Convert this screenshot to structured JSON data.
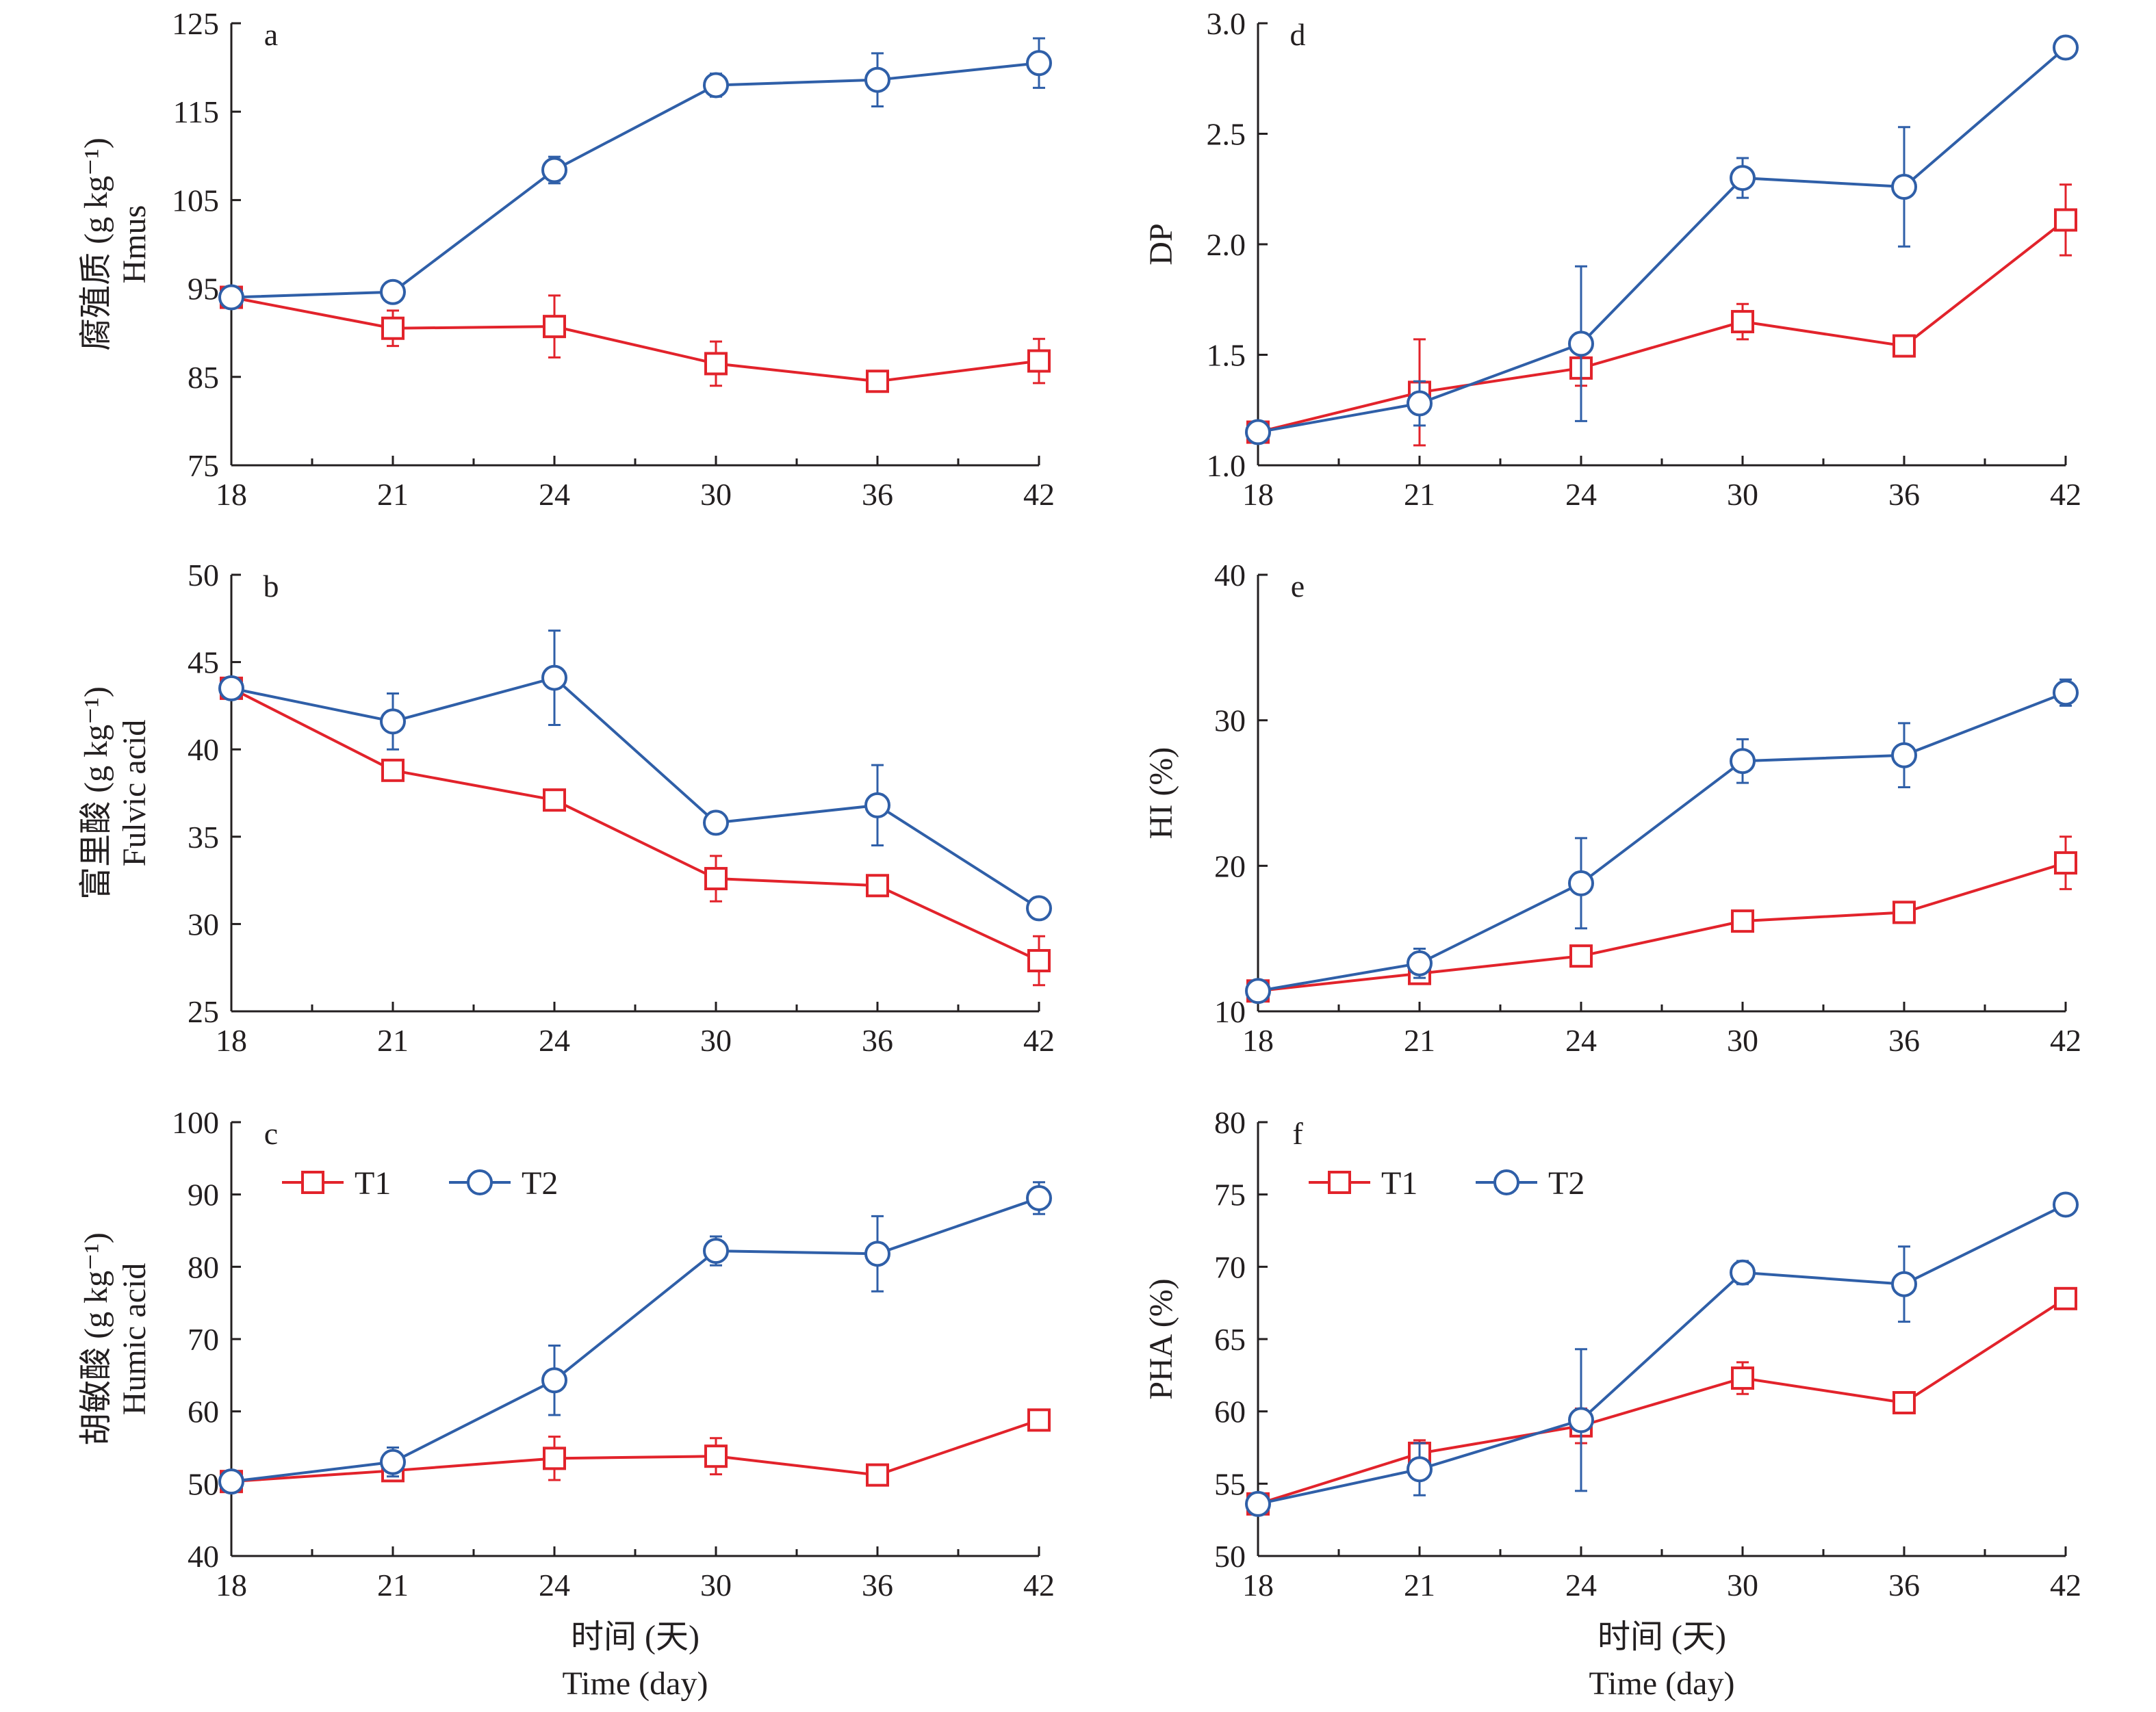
{
  "colors": {
    "T1": "#e2232b",
    "T2": "#2f5fa8",
    "axis": "#231f20"
  },
  "markers": {
    "T1": "square",
    "T2": "circle"
  },
  "chart_data": [
    {
      "id": "a",
      "type": "line",
      "letter": "a",
      "ylabel_zh": "腐殖质 (g kg⁻¹)",
      "ylabel_en": "Hmus",
      "xlabel_zh": "",
      "xlabel_en": "",
      "categories": [
        "18",
        "21",
        "24",
        "30",
        "36",
        "42"
      ],
      "ylim": [
        75,
        125
      ],
      "yticks": [
        75,
        85,
        95,
        105,
        115,
        125
      ],
      "ytick_labels": [
        "75",
        "85",
        "95",
        "105",
        "115",
        "125"
      ],
      "legend": false,
      "series": [
        {
          "name": "T1",
          "values": [
            94,
            90.5,
            90.7,
            86.5,
            84.5,
            86.8
          ],
          "errors": [
            0.8,
            2.0,
            3.5,
            2.5,
            0.6,
            2.5
          ]
        },
        {
          "name": "T2",
          "values": [
            94,
            94.6,
            108.4,
            118,
            118.6,
            120.5
          ],
          "errors": [
            0.8,
            0.8,
            1.5,
            1.3,
            3.0,
            2.8
          ]
        }
      ]
    },
    {
      "id": "b",
      "type": "line",
      "letter": "b",
      "ylabel_zh": "富里酸 (g kg⁻¹)",
      "ylabel_en": "Fulvic acid",
      "xlabel_zh": "",
      "xlabel_en": "",
      "categories": [
        "18",
        "21",
        "24",
        "30",
        "36",
        "42"
      ],
      "ylim": [
        25,
        50
      ],
      "yticks": [
        25,
        30,
        35,
        40,
        45,
        50
      ],
      "ytick_labels": [
        "25",
        "30",
        "35",
        "40",
        "45",
        "50"
      ],
      "legend": false,
      "series": [
        {
          "name": "T1",
          "values": [
            43.5,
            38.8,
            37.1,
            32.6,
            32.2,
            27.9
          ],
          "errors": [
            0.5,
            0.4,
            0.4,
            1.3,
            0.4,
            1.4
          ]
        },
        {
          "name": "T2",
          "values": [
            43.5,
            41.6,
            44.1,
            35.8,
            36.8,
            30.9
          ],
          "errors": [
            0.5,
            1.6,
            2.7,
            0.6,
            2.3,
            0.5
          ]
        }
      ]
    },
    {
      "id": "c",
      "type": "line",
      "letter": "c",
      "ylabel_zh": "胡敏酸 (g kg⁻¹)",
      "ylabel_en": "Humic acid",
      "xlabel_zh": "时间 (天)",
      "xlabel_en": "Time (day)",
      "categories": [
        "18",
        "21",
        "24",
        "30",
        "36",
        "42"
      ],
      "ylim": [
        40,
        100
      ],
      "yticks": [
        40,
        50,
        60,
        70,
        80,
        90,
        100
      ],
      "ytick_labels": [
        "40",
        "50",
        "60",
        "70",
        "80",
        "90",
        "100"
      ],
      "legend": true,
      "series": [
        {
          "name": "T1",
          "values": [
            50.3,
            51.8,
            53.5,
            53.8,
            51.2,
            58.8
          ],
          "errors": [
            0.5,
            1.2,
            3.0,
            2.5,
            1.2,
            0.8
          ]
        },
        {
          "name": "T2",
          "values": [
            50.3,
            53.0,
            64.3,
            82.2,
            81.8,
            89.5
          ],
          "errors": [
            0.5,
            2.0,
            4.8,
            2.0,
            5.2,
            2.2
          ]
        }
      ]
    },
    {
      "id": "d",
      "type": "line",
      "letter": "d",
      "ylabel_zh": "",
      "ylabel_en": "DP",
      "xlabel_zh": "",
      "xlabel_en": "",
      "categories": [
        "18",
        "21",
        "24",
        "30",
        "36",
        "42"
      ],
      "ylim": [
        1.0,
        3.0
      ],
      "yticks": [
        1.0,
        1.5,
        2.0,
        2.5,
        3.0
      ],
      "ytick_labels": [
        "1.0",
        "1.5",
        "2.0",
        "2.5",
        "3.0"
      ],
      "legend": false,
      "series": [
        {
          "name": "T1",
          "values": [
            1.15,
            1.33,
            1.44,
            1.65,
            1.54,
            2.11
          ],
          "errors": [
            0.03,
            0.24,
            0.08,
            0.08,
            0.03,
            0.16
          ]
        },
        {
          "name": "T2",
          "values": [
            1.15,
            1.28,
            1.55,
            2.3,
            2.26,
            2.89
          ],
          "errors": [
            0.03,
            0.1,
            0.35,
            0.09,
            0.27,
            0.03
          ]
        }
      ]
    },
    {
      "id": "e",
      "type": "line",
      "letter": "e",
      "ylabel_zh": "",
      "ylabel_en": "HI (%)",
      "xlabel_zh": "",
      "xlabel_en": "",
      "categories": [
        "18",
        "21",
        "24",
        "30",
        "36",
        "42"
      ],
      "ylim": [
        10,
        40
      ],
      "yticks": [
        10,
        20,
        30,
        40
      ],
      "ytick_labels": [
        "10",
        "20",
        "30",
        "40"
      ],
      "legend": false,
      "series": [
        {
          "name": "T1",
          "values": [
            11.4,
            12.6,
            13.8,
            16.2,
            16.8,
            20.2
          ],
          "errors": [
            0.3,
            0.5,
            0.4,
            0.6,
            0.6,
            1.8
          ]
        },
        {
          "name": "T2",
          "values": [
            11.4,
            13.3,
            18.8,
            27.2,
            27.6,
            31.9
          ],
          "errors": [
            0.3,
            1.0,
            3.1,
            1.5,
            2.2,
            0.9
          ]
        }
      ]
    },
    {
      "id": "f",
      "type": "line",
      "letter": "f",
      "ylabel_zh": "",
      "ylabel_en": "PHA (%)",
      "xlabel_zh": "时间 (天)",
      "xlabel_en": "Time (day)",
      "categories": [
        "18",
        "21",
        "24",
        "30",
        "36",
        "42"
      ],
      "ylim": [
        50,
        80
      ],
      "yticks": [
        50,
        55,
        60,
        65,
        70,
        75,
        80
      ],
      "ytick_labels": [
        "50",
        "55",
        "60",
        "65",
        "70",
        "75",
        "80"
      ],
      "legend": true,
      "series": [
        {
          "name": "T1",
          "values": [
            53.6,
            57.1,
            59.0,
            62.3,
            60.6,
            67.8
          ],
          "errors": [
            0.3,
            0.9,
            1.2,
            1.1,
            0.5,
            0.6
          ]
        },
        {
          "name": "T2",
          "values": [
            53.6,
            56.0,
            59.4,
            69.6,
            68.8,
            74.3
          ],
          "errors": [
            0.3,
            1.8,
            4.9,
            0.8,
            2.6,
            0.2
          ]
        }
      ]
    }
  ]
}
